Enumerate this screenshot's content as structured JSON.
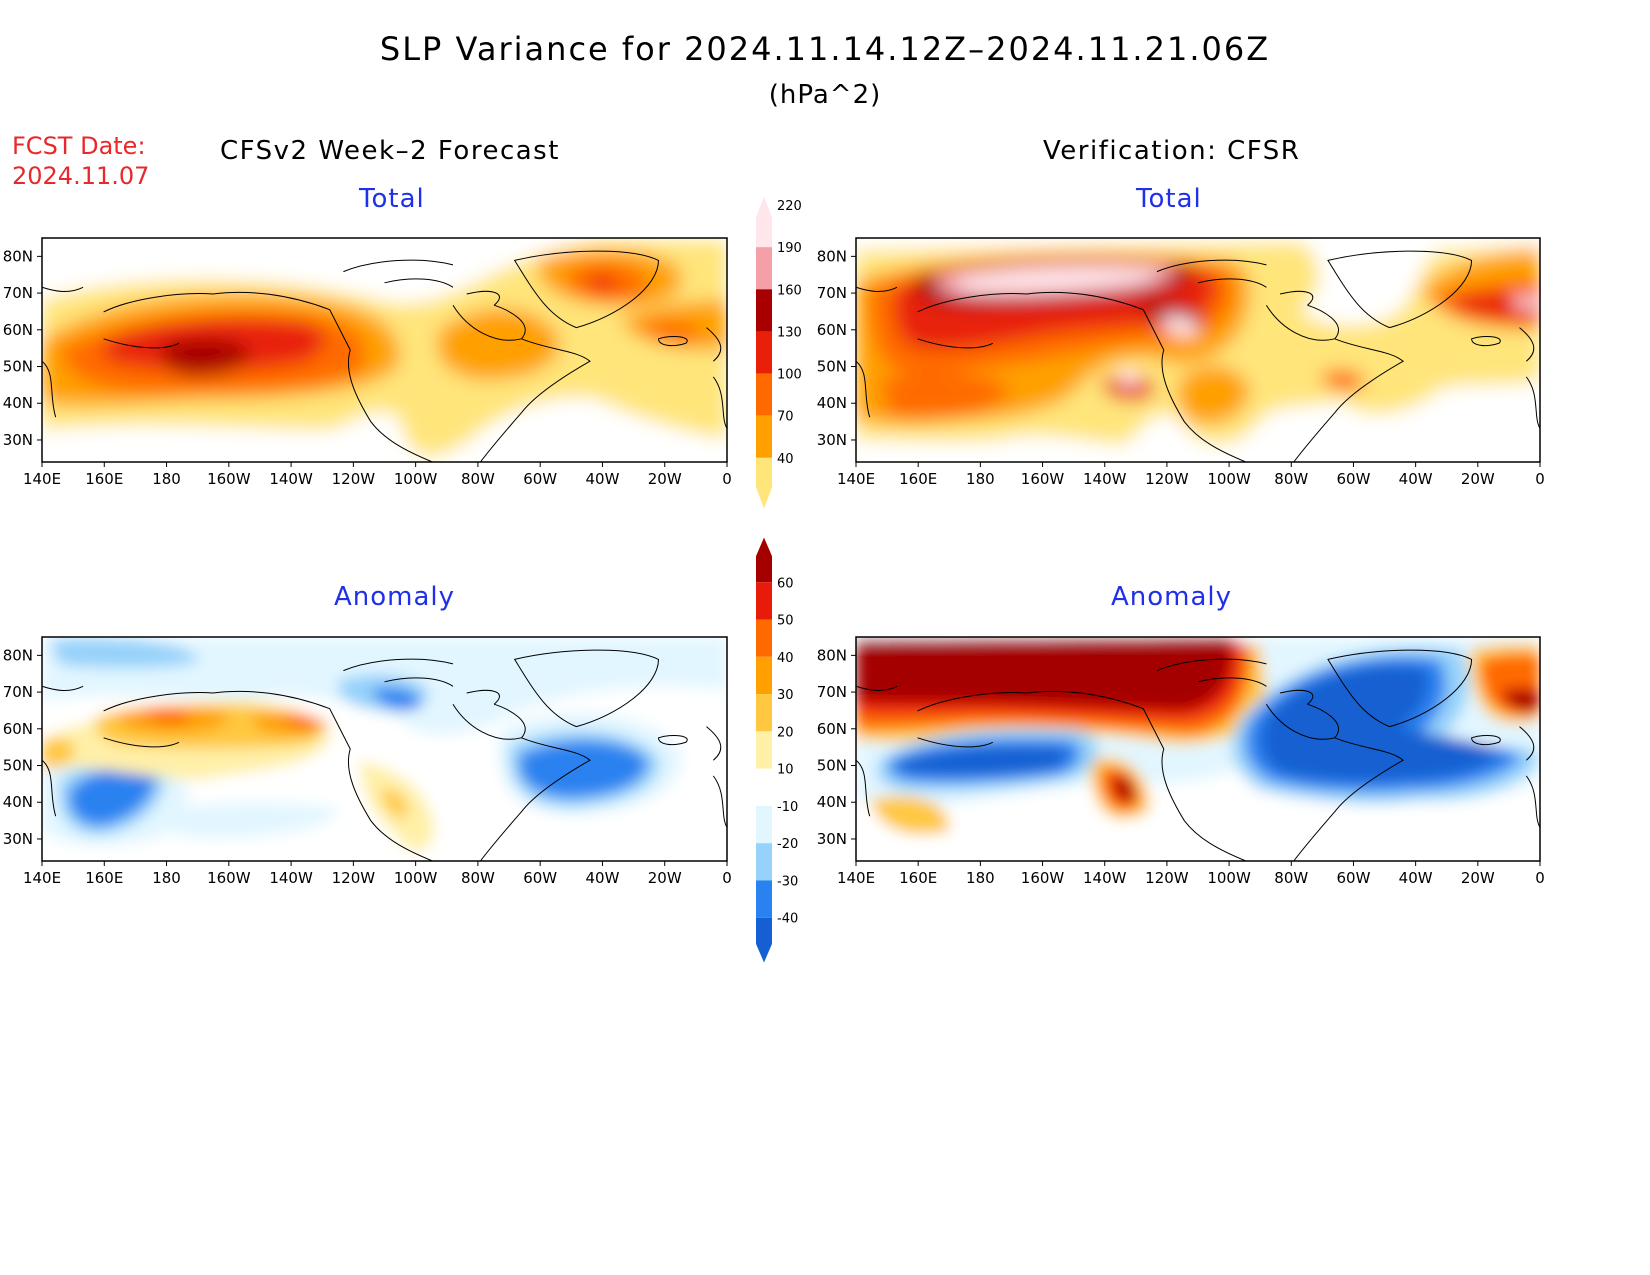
{
  "title": "SLP Variance for 2024.11.14.12Z–2024.11.21.06Z",
  "units": "(hPa^2)",
  "fcst": {
    "label": "FCST Date:",
    "date": "2024.11.07"
  },
  "columns": {
    "forecast": "CFSv2 Week–2 Forecast",
    "verification": "Verification: CFSR"
  },
  "panels": {
    "fc_total": {
      "title": "Total"
    },
    "ver_total": {
      "title": "Total"
    },
    "fc_anom": {
      "title": "Anomaly"
    },
    "ver_anom": {
      "title": "Anomaly"
    }
  },
  "lat_labels": [
    "80N",
    "70N",
    "60N",
    "50N",
    "40N",
    "30N"
  ],
  "lat_values": [
    80,
    70,
    60,
    50,
    40,
    30
  ],
  "lon_labels": [
    "140E",
    "160E",
    "180",
    "160W",
    "140W",
    "120W",
    "100W",
    "80W",
    "60W",
    "40W",
    "20W",
    "0"
  ],
  "total_colorbar": {
    "levels": [
      "40",
      "70",
      "100",
      "130",
      "160",
      "190",
      "220"
    ],
    "colors": [
      "#ffe57a",
      "#ffa000",
      "#ff6a00",
      "#e8200a",
      "#a80000",
      "#f5a0a8",
      "#ffe6ea"
    ]
  },
  "anom_colorbar": {
    "levels": [
      "-40",
      "-30",
      "-20",
      "-10",
      "10",
      "20",
      "30",
      "40",
      "50",
      "60"
    ],
    "colors": [
      "#1460d2",
      "#2a82f0",
      "#96d2fa",
      "#e2f6ff",
      "#ffffff",
      "#fff0a8",
      "#ffc840",
      "#ffa000",
      "#ff6a00",
      "#e81a0a",
      "#a50000"
    ]
  }
}
